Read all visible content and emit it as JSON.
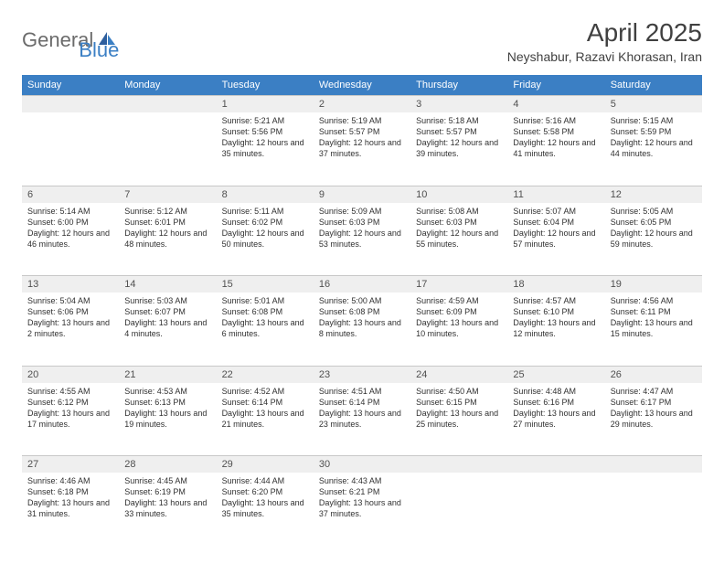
{
  "logo": {
    "general": "General",
    "blue": "Blue"
  },
  "title": "April 2025",
  "location": "Neyshabur, Razavi Khorasan, Iran",
  "colors": {
    "header_bg": "#3b7fc4",
    "header_text": "#ffffff",
    "daynum_bg": "#efefef",
    "border": "#c8c8c8",
    "text": "#303030",
    "title_text": "#404040"
  },
  "day_names": [
    "Sunday",
    "Monday",
    "Tuesday",
    "Wednesday",
    "Thursday",
    "Friday",
    "Saturday"
  ],
  "weeks": [
    [
      null,
      null,
      {
        "n": "1",
        "sr": "5:21 AM",
        "ss": "5:56 PM",
        "dl": "12 hours and 35 minutes."
      },
      {
        "n": "2",
        "sr": "5:19 AM",
        "ss": "5:57 PM",
        "dl": "12 hours and 37 minutes."
      },
      {
        "n": "3",
        "sr": "5:18 AM",
        "ss": "5:57 PM",
        "dl": "12 hours and 39 minutes."
      },
      {
        "n": "4",
        "sr": "5:16 AM",
        "ss": "5:58 PM",
        "dl": "12 hours and 41 minutes."
      },
      {
        "n": "5",
        "sr": "5:15 AM",
        "ss": "5:59 PM",
        "dl": "12 hours and 44 minutes."
      }
    ],
    [
      {
        "n": "6",
        "sr": "5:14 AM",
        "ss": "6:00 PM",
        "dl": "12 hours and 46 minutes."
      },
      {
        "n": "7",
        "sr": "5:12 AM",
        "ss": "6:01 PM",
        "dl": "12 hours and 48 minutes."
      },
      {
        "n": "8",
        "sr": "5:11 AM",
        "ss": "6:02 PM",
        "dl": "12 hours and 50 minutes."
      },
      {
        "n": "9",
        "sr": "5:09 AM",
        "ss": "6:03 PM",
        "dl": "12 hours and 53 minutes."
      },
      {
        "n": "10",
        "sr": "5:08 AM",
        "ss": "6:03 PM",
        "dl": "12 hours and 55 minutes."
      },
      {
        "n": "11",
        "sr": "5:07 AM",
        "ss": "6:04 PM",
        "dl": "12 hours and 57 minutes."
      },
      {
        "n": "12",
        "sr": "5:05 AM",
        "ss": "6:05 PM",
        "dl": "12 hours and 59 minutes."
      }
    ],
    [
      {
        "n": "13",
        "sr": "5:04 AM",
        "ss": "6:06 PM",
        "dl": "13 hours and 2 minutes."
      },
      {
        "n": "14",
        "sr": "5:03 AM",
        "ss": "6:07 PM",
        "dl": "13 hours and 4 minutes."
      },
      {
        "n": "15",
        "sr": "5:01 AM",
        "ss": "6:08 PM",
        "dl": "13 hours and 6 minutes."
      },
      {
        "n": "16",
        "sr": "5:00 AM",
        "ss": "6:08 PM",
        "dl": "13 hours and 8 minutes."
      },
      {
        "n": "17",
        "sr": "4:59 AM",
        "ss": "6:09 PM",
        "dl": "13 hours and 10 minutes."
      },
      {
        "n": "18",
        "sr": "4:57 AM",
        "ss": "6:10 PM",
        "dl": "13 hours and 12 minutes."
      },
      {
        "n": "19",
        "sr": "4:56 AM",
        "ss": "6:11 PM",
        "dl": "13 hours and 15 minutes."
      }
    ],
    [
      {
        "n": "20",
        "sr": "4:55 AM",
        "ss": "6:12 PM",
        "dl": "13 hours and 17 minutes."
      },
      {
        "n": "21",
        "sr": "4:53 AM",
        "ss": "6:13 PM",
        "dl": "13 hours and 19 minutes."
      },
      {
        "n": "22",
        "sr": "4:52 AM",
        "ss": "6:14 PM",
        "dl": "13 hours and 21 minutes."
      },
      {
        "n": "23",
        "sr": "4:51 AM",
        "ss": "6:14 PM",
        "dl": "13 hours and 23 minutes."
      },
      {
        "n": "24",
        "sr": "4:50 AM",
        "ss": "6:15 PM",
        "dl": "13 hours and 25 minutes."
      },
      {
        "n": "25",
        "sr": "4:48 AM",
        "ss": "6:16 PM",
        "dl": "13 hours and 27 minutes."
      },
      {
        "n": "26",
        "sr": "4:47 AM",
        "ss": "6:17 PM",
        "dl": "13 hours and 29 minutes."
      }
    ],
    [
      {
        "n": "27",
        "sr": "4:46 AM",
        "ss": "6:18 PM",
        "dl": "13 hours and 31 minutes."
      },
      {
        "n": "28",
        "sr": "4:45 AM",
        "ss": "6:19 PM",
        "dl": "13 hours and 33 minutes."
      },
      {
        "n": "29",
        "sr": "4:44 AM",
        "ss": "6:20 PM",
        "dl": "13 hours and 35 minutes."
      },
      {
        "n": "30",
        "sr": "4:43 AM",
        "ss": "6:21 PM",
        "dl": "13 hours and 37 minutes."
      },
      null,
      null,
      null
    ]
  ],
  "labels": {
    "sunrise": "Sunrise:",
    "sunset": "Sunset:",
    "daylight": "Daylight:"
  }
}
